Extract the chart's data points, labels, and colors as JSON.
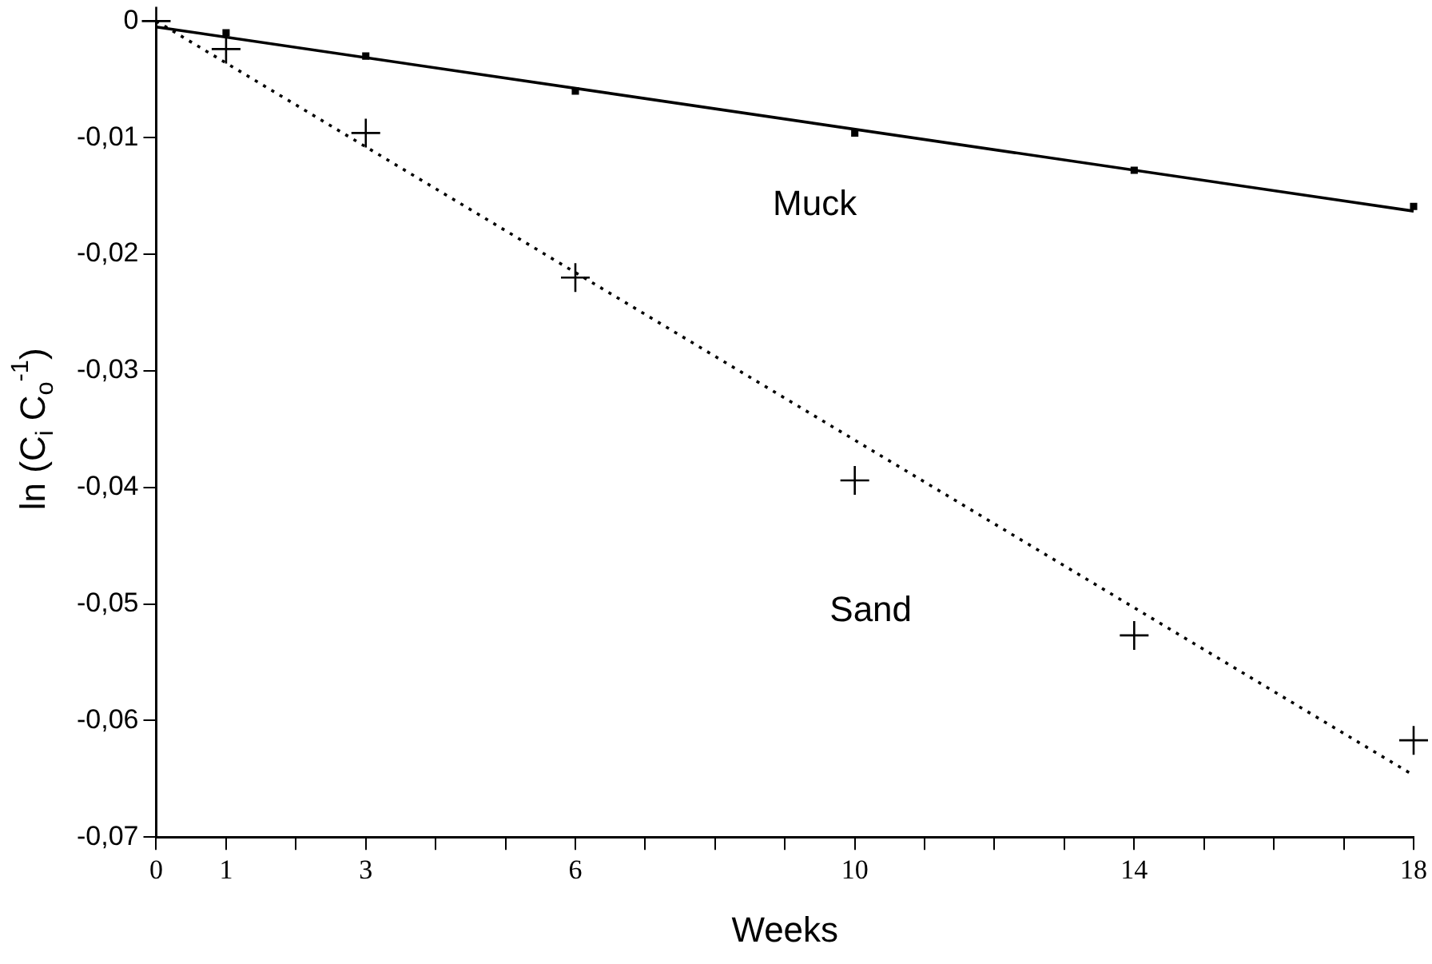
{
  "chart_data": {
    "type": "scatter",
    "xlabel": "Weeks",
    "ylabel": "ln (C$_{i}$ C$_{o}$$^{-1}$)",
    "xlim": [
      0,
      18
    ],
    "xticks": [
      0,
      1,
      {
        "value": 2,
        "label": null
      },
      3,
      {
        "value": 4,
        "label": null
      },
      {
        "value": 5,
        "label": null
      },
      6,
      {
        "value": 7,
        "label": null
      },
      {
        "value": 8,
        "label": null
      },
      {
        "value": 9,
        "label": null
      },
      10,
      {
        "value": 11,
        "label": null
      },
      {
        "value": 12,
        "label": null
      },
      {
        "value": 13,
        "label": null
      },
      14,
      {
        "value": 15,
        "label": null
      },
      {
        "value": 16,
        "label": null
      },
      {
        "value": 17,
        "label": null
      },
      18
    ],
    "ylim": [
      -0.07,
      0
    ],
    "yticks": [
      0,
      {
        "value": -0.01,
        "label": "-0,01"
      },
      {
        "value": -0.02,
        "label": "-0,02"
      },
      {
        "value": -0.03,
        "label": "-0,03"
      },
      {
        "value": -0.04,
        "label": "-0,04"
      },
      {
        "value": -0.05,
        "label": "-0,05"
      },
      {
        "value": -0.06,
        "label": "-0,06"
      },
      {
        "value": -0.07,
        "label": "-0,07"
      }
    ],
    "grid": false,
    "legend": false,
    "series": [
      {
        "name": "Muck",
        "type": "scatter",
        "marker": "square",
        "color": "#000000",
        "x": [
          1,
          3,
          6,
          10,
          14,
          18
        ],
        "values": [
          -0.001,
          -0.003,
          -0.006,
          -0.0096,
          -0.0128,
          -0.0159
        ]
      },
      {
        "name": "Sand",
        "type": "scatter",
        "marker": "cross",
        "color": "#000000",
        "x": [
          0,
          1,
          3,
          6,
          10,
          14,
          18
        ],
        "values": [
          0,
          -0.0024,
          -0.0096,
          -0.022,
          -0.0394,
          -0.0527,
          -0.0617
        ]
      },
      {
        "type": "line",
        "marker": "none",
        "line_style": "solid",
        "color": "#000000",
        "x": [
          0,
          18
        ],
        "values": [
          -0.0005,
          -0.0163
        ]
      },
      {
        "type": "line",
        "marker": "none",
        "line_style": "dotted",
        "color": "#000000",
        "x": [
          0,
          18
        ],
        "values": [
          0,
          -0.0647
        ]
      }
    ]
  }
}
